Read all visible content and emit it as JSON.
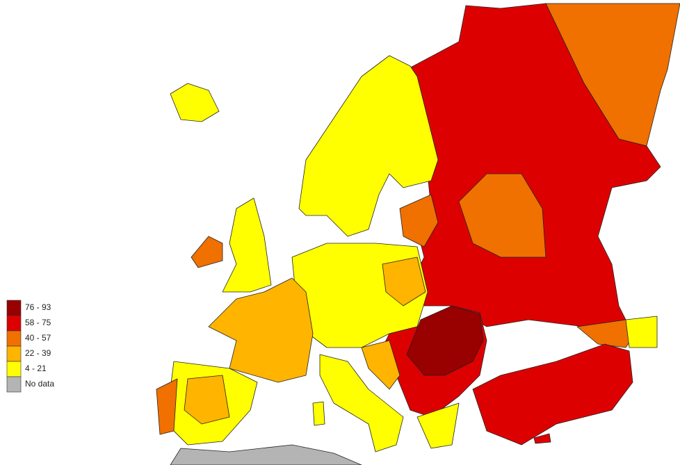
{
  "legend": {
    "items": [
      {
        "label": "76 - 93",
        "color": "#990000"
      },
      {
        "label": "58 - 75",
        "color": "#dd0000"
      },
      {
        "label": "40 - 57",
        "color": "#f07000"
      },
      {
        "label": "22 - 39",
        "color": "#ffb400"
      },
      {
        "label": "4 - 21",
        "color": "#ffff00"
      },
      {
        "label": "No data",
        "color": "#b4b4b4"
      }
    ]
  }
}
